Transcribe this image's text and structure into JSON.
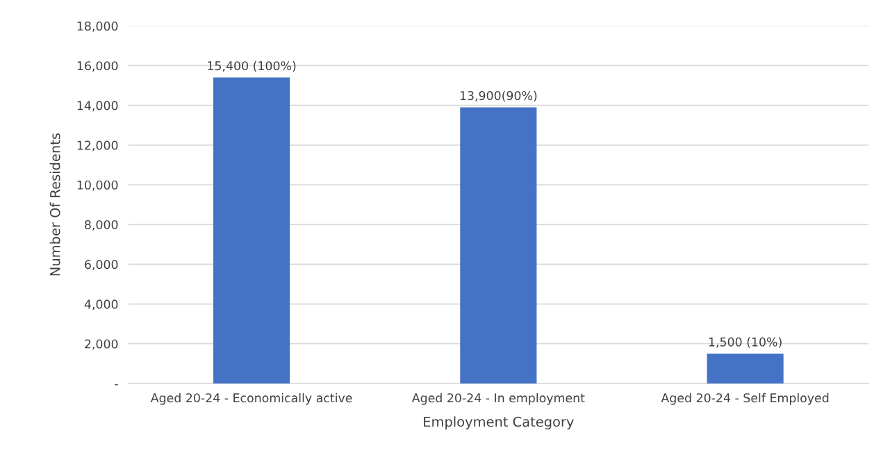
{
  "chart_data": {
    "type": "bar",
    "xlabel": "Employment Category",
    "ylabel": "Number Of Residents",
    "categories": [
      "Aged 20-24 - Economically active",
      "Aged 20-24 - In employment",
      "Aged 20-24 - Self Employed"
    ],
    "values": [
      15400,
      13900,
      1500
    ],
    "value_labels": [
      "15,400 (100%)",
      "13,900(90%)",
      "1,500 (10%)"
    ],
    "color": "#4472c4",
    "ylim": [
      0,
      18000
    ],
    "yticks": [
      {
        "value": 0,
        "label": "-"
      },
      {
        "value": 2000,
        "label": "2,000"
      },
      {
        "value": 4000,
        "label": "4,000"
      },
      {
        "value": 6000,
        "label": "6,000"
      },
      {
        "value": 8000,
        "label": "8,000"
      },
      {
        "value": 10000,
        "label": "10,000"
      },
      {
        "value": 12000,
        "label": "12,000"
      },
      {
        "value": 14000,
        "label": "14,000"
      },
      {
        "value": 16000,
        "label": "16,000"
      },
      {
        "value": 18000,
        "label": "18,000"
      }
    ],
    "grid": "y"
  }
}
